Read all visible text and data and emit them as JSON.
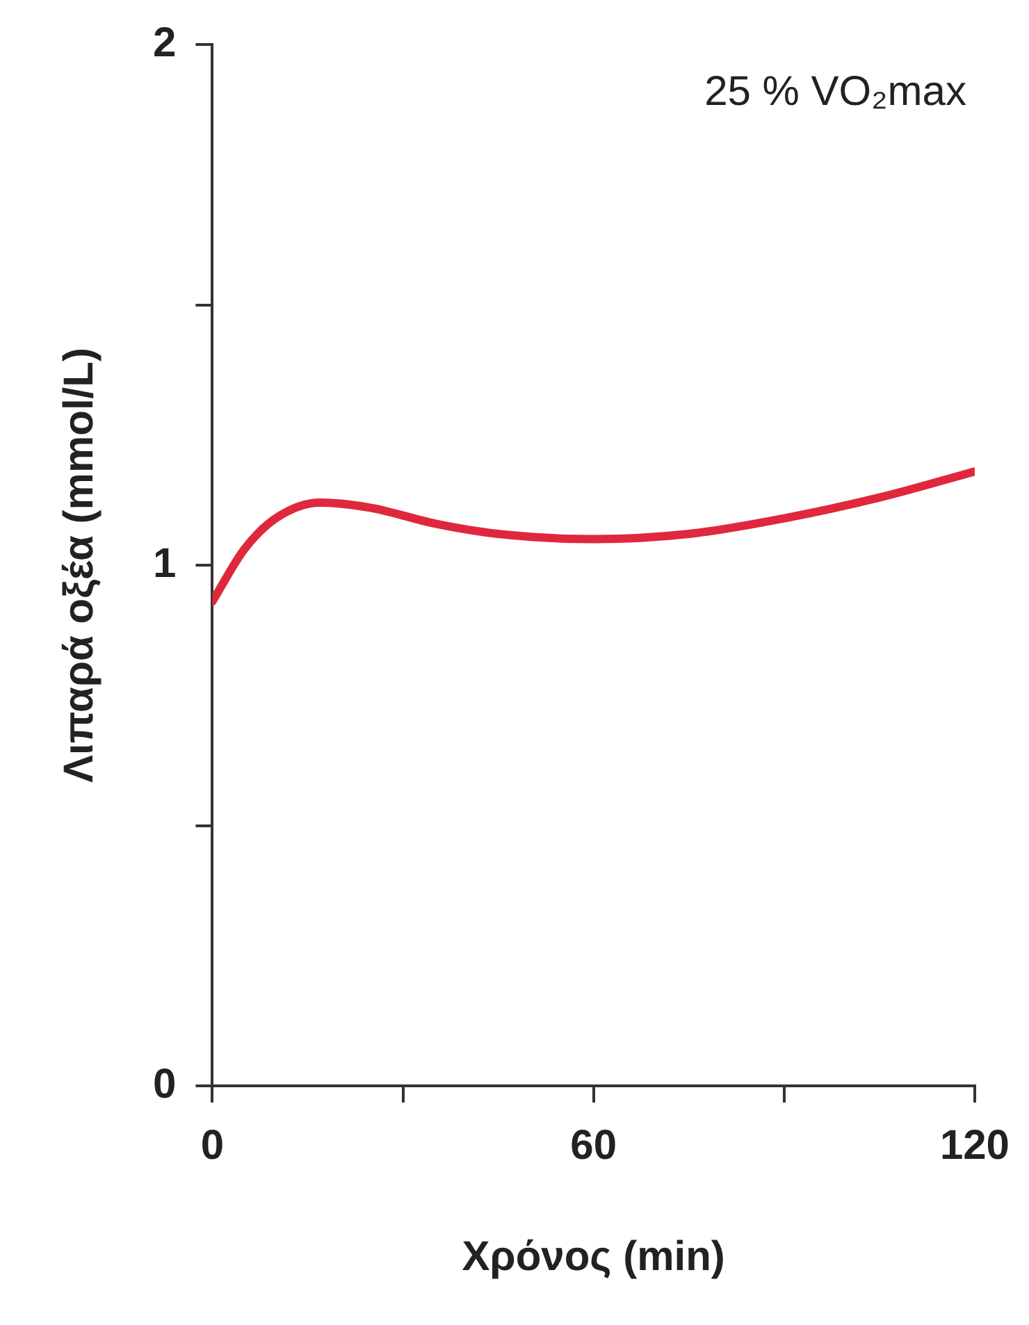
{
  "chart_data": {
    "type": "line",
    "xlabel": "Χρόνος (min)",
    "ylabel": "Λιπαρά οξέα (mmol/L)",
    "annotations": [
      "25 % VO₂max"
    ],
    "x": [
      0,
      5,
      10,
      17,
      25,
      35,
      45,
      60,
      75,
      90,
      105,
      120
    ],
    "series": [
      {
        "color": "#e0283c",
        "values": [
          0.93,
          1.03,
          1.09,
          1.12,
          1.11,
          1.08,
          1.06,
          1.05,
          1.06,
          1.09,
          1.13,
          1.18
        ]
      }
    ],
    "xlim": [
      0,
      120
    ],
    "xticks": [
      0,
      {
        "value": 30,
        "label": null
      },
      60,
      {
        "value": 90,
        "label": null
      },
      120
    ],
    "ylim": [
      0,
      2
    ],
    "yticks": [
      0,
      {
        "value": 0.5,
        "label": null
      },
      1,
      {
        "value": 1.5,
        "label": null
      },
      2
    ],
    "grid": false,
    "legend": false,
    "marker": "none",
    "line_style": "solid"
  }
}
